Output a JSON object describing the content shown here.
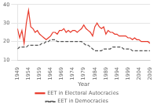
{
  "chart_data": {
    "type": "line",
    "xlabel": "Year",
    "x": [
      1949,
      1950,
      1951,
      1952,
      1953,
      1954,
      1955,
      1956,
      1957,
      1958,
      1959,
      1960,
      1961,
      1962,
      1963,
      1964,
      1965,
      1966,
      1967,
      1968,
      1969,
      1970,
      1971,
      1972,
      1973,
      1974,
      1975,
      1976,
      1977,
      1978,
      1979,
      1980,
      1981,
      1982,
      1983,
      1984,
      1985,
      1986,
      1987,
      1988,
      1989,
      1990,
      1991,
      1992,
      1993,
      1994,
      1995,
      1996,
      1997,
      1998,
      1999,
      2000,
      2001,
      2002,
      2003,
      2004,
      2005,
      2006,
      2007,
      2008,
      2009
    ],
    "series": [
      {
        "name": "EET in Electoral Autocracies",
        "color": "#e8392a",
        "line_style": "solid",
        "values": [
          27,
          22,
          26,
          19,
          30,
          37,
          28,
          27,
          25,
          26,
          24,
          23,
          22,
          21,
          22,
          23,
          25,
          25,
          24,
          26,
          26,
          27,
          25,
          26,
          25,
          26,
          26,
          25,
          26,
          27,
          29,
          27,
          26,
          25,
          23,
          28,
          30,
          28,
          27,
          28,
          24,
          26,
          25,
          25,
          24,
          24,
          23,
          23,
          23,
          23,
          22,
          22,
          21,
          22,
          21,
          21,
          20,
          20,
          20,
          20,
          19
        ]
      },
      {
        "name": "EET in Democracies",
        "color": "#555555",
        "line_style": "dashed",
        "values": [
          16,
          17,
          17,
          17,
          17,
          18,
          18,
          18,
          18,
          18,
          18,
          19,
          19,
          20,
          20,
          21,
          21,
          21,
          20,
          20,
          20,
          20,
          20,
          20,
          20,
          20,
          20,
          20,
          20,
          20,
          19,
          18,
          18,
          17,
          16,
          15,
          15,
          15,
          15,
          16,
          16,
          16,
          16,
          17,
          17,
          17,
          17,
          17,
          16,
          16,
          16,
          16,
          15,
          15,
          15,
          15,
          15,
          15,
          15,
          15,
          15
        ]
      }
    ],
    "xlim": [
      1949,
      2009
    ],
    "xticks": [
      1949,
      1954,
      1959,
      1964,
      1969,
      1974,
      1979,
      1984,
      1989,
      1994,
      1999,
      2004,
      2009
    ],
    "ylim": [
      10,
      40
    ],
    "yticks": [
      10,
      20,
      30,
      40
    ],
    "grid": true,
    "legend": "bottom"
  }
}
